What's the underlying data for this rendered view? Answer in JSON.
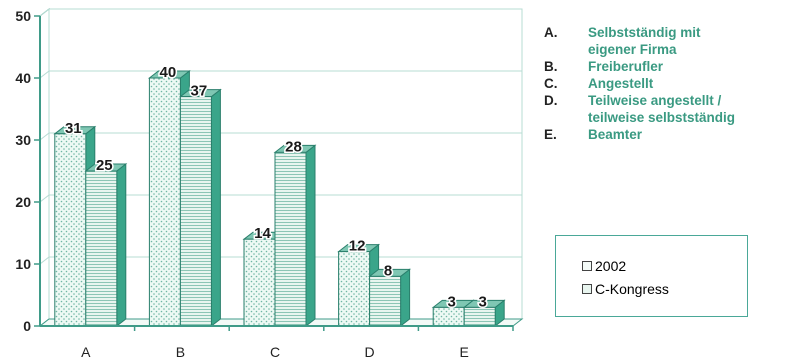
{
  "chart_data": {
    "type": "bar",
    "categories": [
      "A",
      "B",
      "C",
      "D",
      "E"
    ],
    "series": [
      {
        "name": "2002",
        "values": [
          31,
          40,
          14,
          12,
          3
        ]
      },
      {
        "name": "C-Kongress",
        "values": [
          25,
          37,
          28,
          8,
          3
        ]
      }
    ],
    "ylim": [
      0,
      50
    ],
    "yticks": [
      "0",
      "10",
      "20",
      "30",
      "40",
      "50"
    ],
    "grid": true,
    "legend_position": "right",
    "colors": {
      "fill": "#e9f7f1",
      "side": "#3aa58a",
      "edge": "#2a7f6c",
      "axis": "#3f9b88",
      "text_teal": "#3a9a82"
    }
  },
  "category_legend": [
    {
      "key": "A.",
      "lines": [
        "Selbstständig mit",
        "eigener Firma"
      ]
    },
    {
      "key": "B.",
      "lines": [
        "Freiberufler"
      ]
    },
    {
      "key": "C.",
      "lines": [
        "Angestellt"
      ]
    },
    {
      "key": "D.",
      "lines": [
        "Teilweise angestellt /",
        "teilweise selbstständig"
      ]
    },
    {
      "key": "E.",
      "lines": [
        "Beamter"
      ]
    }
  ]
}
